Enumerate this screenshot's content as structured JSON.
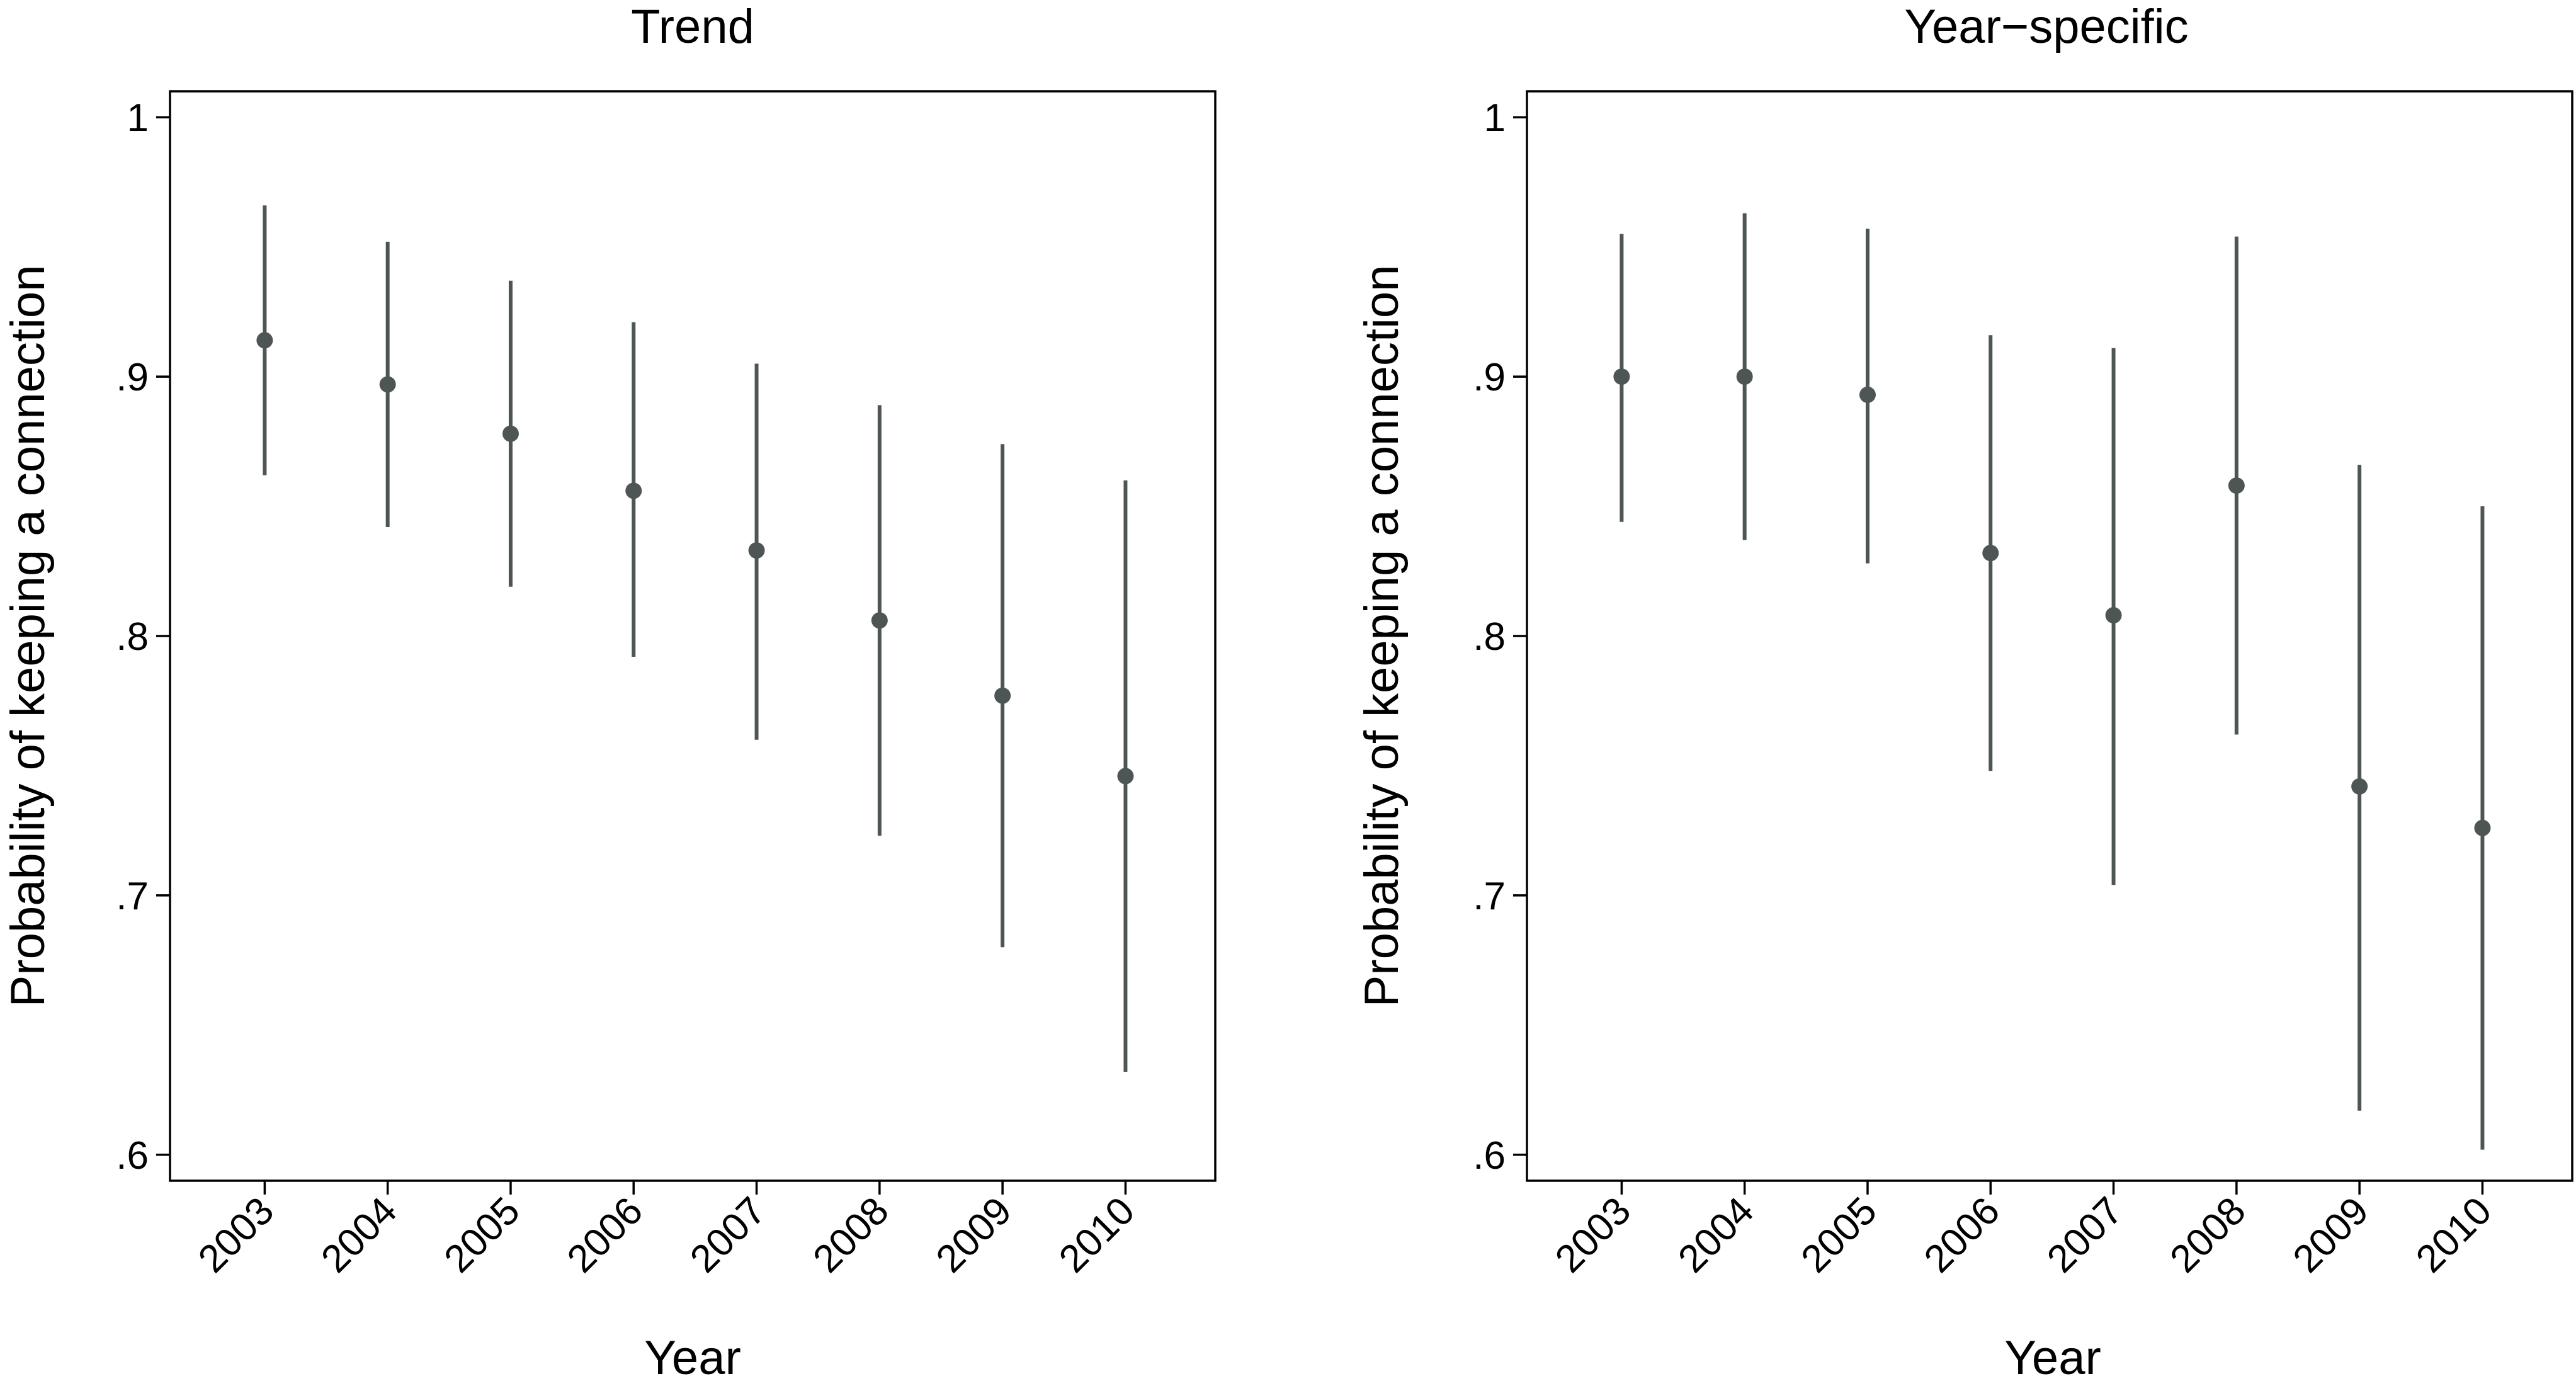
{
  "chart_data": [
    {
      "type": "scatter",
      "title": "Trend",
      "xlabel": "Year",
      "ylabel": "Probability of keeping a connection",
      "categories": [
        "2003",
        "2004",
        "2005",
        "2006",
        "2007",
        "2008",
        "2009",
        "2010"
      ],
      "y_ticks": [
        1,
        0.9,
        0.8,
        0.7,
        0.6
      ],
      "y_tick_labels": [
        "1",
        ".9",
        ".8",
        ".7",
        ".6"
      ],
      "ylim": [
        0.59,
        1.01
      ],
      "grid": false,
      "estimates": [
        0.914,
        0.897,
        0.878,
        0.856,
        0.833,
        0.806,
        0.777,
        0.746
      ],
      "ci_lower": [
        0.862,
        0.842,
        0.819,
        0.792,
        0.76,
        0.723,
        0.68,
        0.632
      ],
      "ci_upper": [
        0.966,
        0.952,
        0.937,
        0.921,
        0.905,
        0.889,
        0.874,
        0.86
      ]
    },
    {
      "type": "scatter",
      "title": "Year−specific",
      "xlabel": "Year",
      "ylabel": "Probability of keeping a connection",
      "categories": [
        "2003",
        "2004",
        "2005",
        "2006",
        "2007",
        "2008",
        "2009",
        "2010"
      ],
      "y_ticks": [
        1,
        0.9,
        0.8,
        0.7,
        0.6
      ],
      "y_tick_labels": [
        "1",
        ".9",
        ".8",
        ".7",
        ".6"
      ],
      "ylim": [
        0.59,
        1.01
      ],
      "grid": false,
      "estimates": [
        0.9,
        0.9,
        0.893,
        0.832,
        0.808,
        0.858,
        0.742,
        0.726
      ],
      "ci_lower": [
        0.844,
        0.837,
        0.828,
        0.748,
        0.704,
        0.762,
        0.617,
        0.602
      ],
      "ci_upper": [
        0.955,
        0.963,
        0.957,
        0.916,
        0.911,
        0.954,
        0.866,
        0.85
      ]
    }
  ],
  "style": {
    "marker_color": "#4d5654",
    "axis_color": "#000000",
    "background": "#ffffff"
  }
}
